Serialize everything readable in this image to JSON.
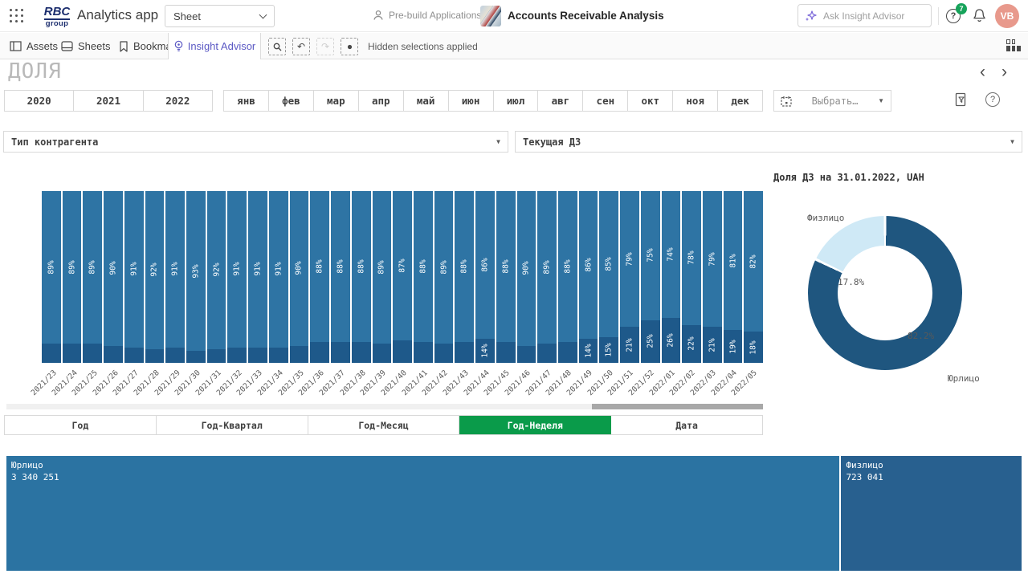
{
  "topbar": {
    "logo_line1": "RBC",
    "logo_line2": "group",
    "app_title": "Analytics app",
    "sheet_selector_value": "Sheet",
    "space_label": "Pre-build Applications",
    "document_title": "Accounts Receivable Analysis",
    "more_label": "···",
    "search_placeholder": "Ask Insight Advisor",
    "notification_count": "7",
    "help_label": "?",
    "avatar_initials": "VB"
  },
  "toolbar": {
    "assets_label": "Assets",
    "sheets_label": "Sheets",
    "bookmarks_label": "Bookmarks",
    "insight_advisor_label": "Insight Advisor",
    "undo_glyph": "↶",
    "redo_glyph": "↷",
    "hidden_selections_label": "Hidden selections applied"
  },
  "sheet": {
    "title": "ДОЛЯ",
    "prev_arrow": "‹",
    "next_arrow": "›"
  },
  "filters": {
    "years": [
      "2020",
      "2021",
      "2022"
    ],
    "months": [
      "янв",
      "фев",
      "мар",
      "апр",
      "май",
      "июн",
      "июл",
      "авг",
      "сен",
      "окт",
      "ноя",
      "дек"
    ],
    "date_picker_label": "Выбрать…",
    "help_label": "?",
    "dropdown_left": "Тип контрагента",
    "dropdown_right": "Текущая ДЗ"
  },
  "tabs": {
    "items": [
      "Год",
      "Год-Квартал",
      "Год-Месяц",
      "Год-Неделя",
      "Дата"
    ],
    "active_index": 3
  },
  "chart_data": [
    {
      "id": "share-by-week",
      "type": "bar",
      "stacked": true,
      "orientation": "vertical",
      "value_suffix": "%",
      "label_min": 14,
      "ylim": [
        0,
        100
      ],
      "grid": false,
      "legend": "none",
      "categories": [
        "2021/23",
        "2021/24",
        "2021/25",
        "2021/26",
        "2021/27",
        "2021/28",
        "2021/29",
        "2021/30",
        "2021/31",
        "2021/32",
        "2021/33",
        "2021/34",
        "2021/35",
        "2021/36",
        "2021/37",
        "2021/38",
        "2021/39",
        "2021/40",
        "2021/41",
        "2021/42",
        "2021/43",
        "2021/44",
        "2021/45",
        "2021/46",
        "2021/47",
        "2021/48",
        "2021/49",
        "2021/50",
        "2021/51",
        "2021/52",
        "2022/01",
        "2022/02",
        "2022/03",
        "2022/04",
        "2022/05"
      ],
      "series": [
        {
          "name": "Юрлицо",
          "color": "#2e74a4",
          "values": [
            89,
            89,
            89,
            90,
            91,
            92,
            91,
            93,
            92,
            91,
            91,
            91,
            90,
            88,
            88,
            88,
            89,
            87,
            88,
            89,
            88,
            86,
            88,
            90,
            89,
            88,
            86,
            85,
            79,
            75,
            74,
            78,
            79,
            81,
            82
          ]
        },
        {
          "name": "Физлицо",
          "color": "#1e598a",
          "values": [
            11,
            11,
            11,
            10,
            9,
            8,
            9,
            7,
            8,
            9,
            9,
            9,
            10,
            12,
            12,
            12,
            11,
            13,
            12,
            11,
            12,
            14,
            12,
            10,
            11,
            12,
            14,
            15,
            21,
            25,
            26,
            22,
            21,
            19,
            18
          ]
        }
      ]
    },
    {
      "id": "share-donut",
      "type": "pie",
      "donut": true,
      "title": "Доля ДЗ на 31.01.2022, UAH",
      "legend": "none",
      "slices": [
        {
          "label": "Юрлицо",
          "value": 82.2,
          "display": "82.2%",
          "color": "#1f567f"
        },
        {
          "label": "Физлицо",
          "value": 17.8,
          "display": "17.8%",
          "color": "#cfe9f6"
        }
      ]
    },
    {
      "id": "share-treemap",
      "type": "treemap",
      "items": [
        {
          "label": "Юрлицо",
          "value": 3340251,
          "display_value": "3 340 251",
          "color": "#2b73a2"
        },
        {
          "label": "Физлицо",
          "value": 723041,
          "display_value": "723 041",
          "color": "#28608f"
        }
      ]
    }
  ],
  "colors": {
    "accent_green": "#0a9b4a",
    "insight_purple": "#5b59c4",
    "bar_primary": "#2e74a4",
    "bar_secondary": "#1e598a",
    "donut_dark": "#1f567f",
    "donut_light": "#cfe9f6",
    "treemap_primary": "#2b73a2",
    "treemap_secondary": "#28608f",
    "avatar_bg": "#e8998c",
    "badge_green": "#16a35a"
  }
}
